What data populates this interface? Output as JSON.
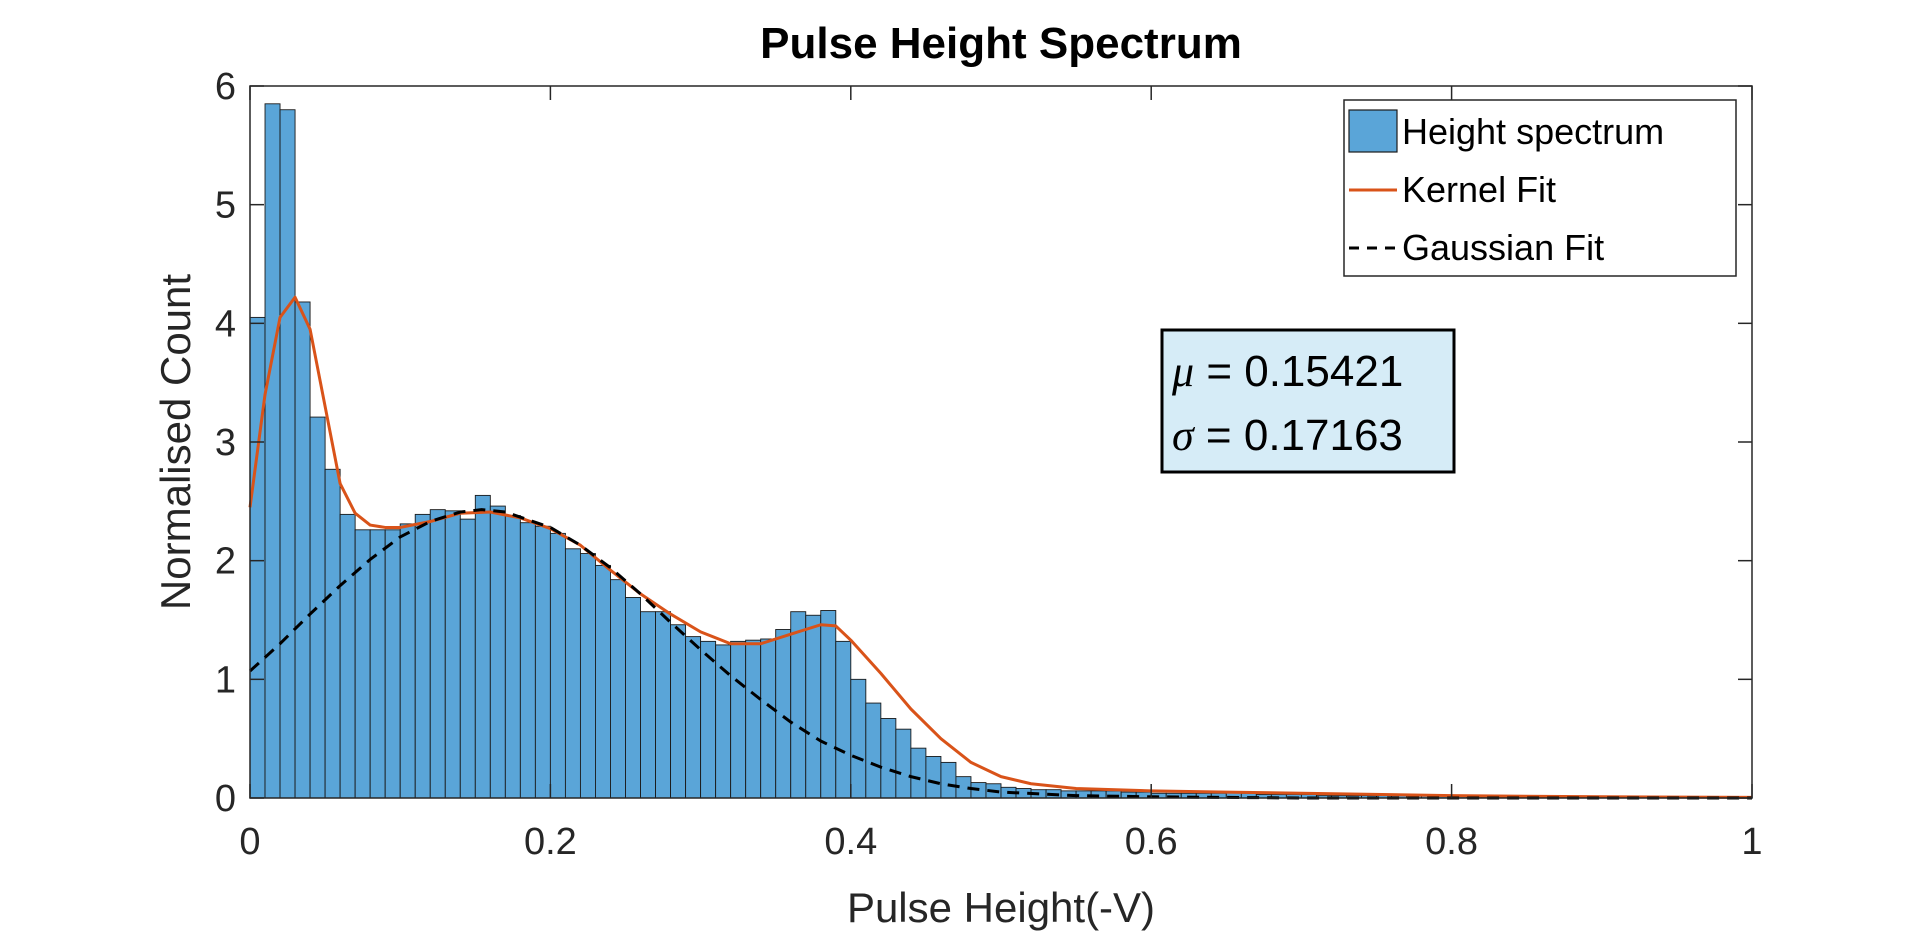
{
  "chart_data": {
    "type": "bar",
    "title": "Pulse Height Spectrum",
    "xlabel": "Pulse Height(-V)",
    "ylabel": "Normalised Count",
    "xlim": [
      0,
      1
    ],
    "ylim": [
      0,
      6
    ],
    "xticks": [
      0,
      0.2,
      0.4,
      0.6,
      0.8,
      1
    ],
    "xtick_labels": [
      "0",
      "0.2",
      "0.4",
      "0.6",
      "0.8",
      "1"
    ],
    "yticks": [
      0,
      1,
      2,
      3,
      4,
      5,
      6
    ],
    "ytick_labels": [
      "0",
      "1",
      "2",
      "3",
      "4",
      "5",
      "6"
    ],
    "grid": false,
    "legend_position": "top-right",
    "colors": {
      "bar_fill": "#5aa5d8",
      "bar_edge": "#1a1a1a",
      "kernel": "#d95319",
      "gaussian": "#000000",
      "stats_box_fill": "#d6ecf7"
    },
    "series": [
      {
        "name": "Height spectrum",
        "type": "histogram",
        "bin_width": 0.01,
        "bin_start": 0,
        "values": [
          4.05,
          5.85,
          5.8,
          4.18,
          3.21,
          2.77,
          2.39,
          2.26,
          2.26,
          2.26,
          2.31,
          2.39,
          2.43,
          2.42,
          2.35,
          2.55,
          2.46,
          2.38,
          2.32,
          2.29,
          2.23,
          2.1,
          2.06,
          1.96,
          1.84,
          1.69,
          1.57,
          1.57,
          1.46,
          1.36,
          1.32,
          1.29,
          1.32,
          1.33,
          1.34,
          1.42,
          1.57,
          1.54,
          1.58,
          1.32,
          1.0,
          0.8,
          0.67,
          0.58,
          0.42,
          0.35,
          0.3,
          0.18,
          0.13,
          0.12,
          0.09,
          0.08,
          0.07,
          0.07,
          0.06,
          0.06,
          0.06,
          0.06,
          0.05,
          0.05,
          0.04,
          0.04,
          0.04,
          0.04,
          0.04,
          0.05,
          0.04,
          0.03,
          0.03,
          0.03,
          0.03,
          0.02,
          0.02,
          0.02,
          0.02,
          0.02,
          0.02,
          0.02,
          0.02,
          0.02,
          0.02,
          0.01,
          0.01,
          0.01,
          0.01,
          0.01,
          0.01,
          0.01,
          0.01,
          0.01,
          0.01,
          0.01,
          0.01,
          0.01,
          0.01,
          0.01,
          0.01,
          0.01,
          0.01,
          0.01
        ]
      },
      {
        "name": "Kernel Fit",
        "type": "line",
        "x": [
          0,
          0.01,
          0.02,
          0.03,
          0.04,
          0.05,
          0.06,
          0.07,
          0.08,
          0.09,
          0.1,
          0.12,
          0.14,
          0.16,
          0.18,
          0.2,
          0.22,
          0.24,
          0.26,
          0.28,
          0.3,
          0.32,
          0.34,
          0.36,
          0.38,
          0.39,
          0.4,
          0.42,
          0.44,
          0.46,
          0.48,
          0.5,
          0.52,
          0.55,
          0.6,
          0.65,
          0.7,
          0.8,
          0.9,
          1.0
        ],
        "y": [
          2.45,
          3.4,
          4.05,
          4.22,
          3.95,
          3.3,
          2.65,
          2.4,
          2.3,
          2.28,
          2.28,
          2.33,
          2.4,
          2.41,
          2.36,
          2.27,
          2.13,
          1.92,
          1.72,
          1.55,
          1.4,
          1.3,
          1.3,
          1.38,
          1.46,
          1.45,
          1.33,
          1.05,
          0.75,
          0.5,
          0.3,
          0.18,
          0.12,
          0.08,
          0.06,
          0.05,
          0.04,
          0.02,
          0.01,
          0.005
        ]
      },
      {
        "name": "Gaussian Fit",
        "type": "line",
        "style": "dashed",
        "x": [
          0,
          0.02,
          0.04,
          0.06,
          0.08,
          0.1,
          0.12,
          0.14,
          0.15421,
          0.17,
          0.2,
          0.22,
          0.24,
          0.26,
          0.28,
          0.3,
          0.32,
          0.34,
          0.36,
          0.38,
          0.4,
          0.42,
          0.44,
          0.46,
          0.48,
          0.5,
          0.55,
          0.6,
          0.7,
          0.8,
          0.9,
          1.0
        ],
        "y": [
          1.07,
          1.3,
          1.55,
          1.79,
          2.01,
          2.2,
          2.33,
          2.41,
          2.43,
          2.41,
          2.28,
          2.13,
          1.94,
          1.72,
          1.48,
          1.25,
          1.03,
          0.83,
          0.64,
          0.48,
          0.36,
          0.26,
          0.18,
          0.12,
          0.08,
          0.05,
          0.02,
          0.01,
          0.0,
          0.0,
          0.0,
          0.0
        ]
      }
    ],
    "annotation": {
      "mu_symbol": "μ",
      "mu_text": " = 0.15421",
      "sigma_symbol": "σ",
      "sigma_text": " = 0.17163"
    }
  }
}
